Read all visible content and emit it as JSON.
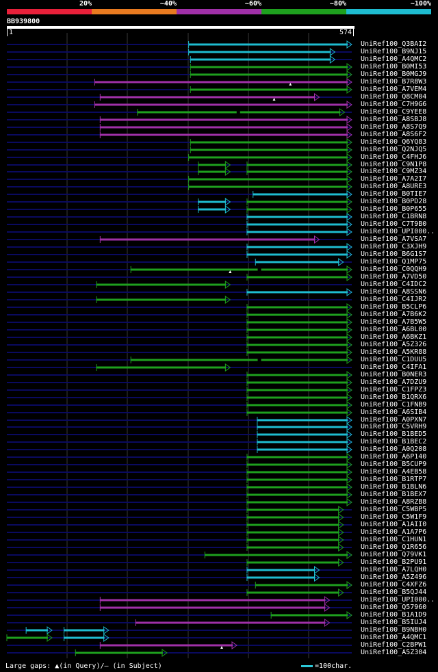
{
  "legend": {
    "labels": [
      "20%",
      "~40%",
      "~60%",
      "~80%",
      "~100%"
    ],
    "colors": [
      "#e8203a",
      "#e87a20",
      "#a030a8",
      "#1ea01e",
      "#1ebcd0"
    ]
  },
  "query": {
    "name": "BB939800",
    "start": "1",
    "end": "574"
  },
  "track_color": "#0a0a60",
  "hits": [
    {
      "id": "UniRef100_Q3BAI2",
      "color": "cyan",
      "start": 303,
      "end": 574
    },
    {
      "id": "UniRef100_B9NJ15",
      "color": "cyan",
      "start": 303,
      "end": 546
    },
    {
      "id": "UniRef100_A4QMC2",
      "color": "cyan",
      "start": 306,
      "end": 546
    },
    {
      "id": "UniRef100_B0MI53",
      "color": "green",
      "start": 306,
      "end": 574
    },
    {
      "id": "UniRef100_B0MGJ9",
      "color": "green",
      "start": 306,
      "end": 574
    },
    {
      "id": "UniRef100_B7R8W3",
      "color": "purple",
      "start": 147,
      "end": 574,
      "query_gap": 472
    },
    {
      "id": "UniRef100_A7VEM4",
      "color": "green",
      "start": 306,
      "end": 574
    },
    {
      "id": "UniRef100_Q8CM04",
      "color": "purple",
      "start": 156,
      "end": 520,
      "query_gap": 445
    },
    {
      "id": "UniRef100_C7H9G6",
      "color": "purple",
      "start": 147,
      "end": 574
    },
    {
      "id": "UniRef100_C9YEE8",
      "color": "green",
      "start": 218,
      "end": 562,
      "subject_gap": 385
    },
    {
      "id": "UniRef100_A8SBJ8",
      "color": "purple",
      "start": 156,
      "end": 574
    },
    {
      "id": "UniRef100_A8S7Q9",
      "color": "purple",
      "start": 156,
      "end": 574
    },
    {
      "id": "UniRef100_A8S6F2",
      "color": "purple",
      "start": 156,
      "end": 574
    },
    {
      "id": "UniRef100_Q6YQ83",
      "color": "green",
      "start": 306,
      "end": 574
    },
    {
      "id": "UniRef100_Q2NJQ5",
      "color": "green",
      "start": 306,
      "end": 574
    },
    {
      "id": "UniRef100_C4FHJ6",
      "color": "green",
      "start": 303,
      "end": 574
    },
    {
      "id": "UniRef100_C9N1P8",
      "color": "green",
      "start": 319,
      "end": 372,
      "start2": 400,
      "end2": 574
    },
    {
      "id": "UniRef100_C9MZ34",
      "color": "green",
      "start": 319,
      "end": 372,
      "start2": 400,
      "end2": 574
    },
    {
      "id": "UniRef100_A7A2I7",
      "color": "green",
      "start": 303,
      "end": 574
    },
    {
      "id": "UniRef100_A8URE3",
      "color": "green",
      "start": 303,
      "end": 574
    },
    {
      "id": "UniRef100_B0TIE7",
      "color": "cyan",
      "start": 410,
      "end": 574
    },
    {
      "id": "UniRef100_B0PD28",
      "color": "cyan",
      "start": 319,
      "end": 372,
      "start2": 400,
      "end2": 574,
      "color2": "green"
    },
    {
      "id": "UniRef100_B0P655",
      "color": "cyan",
      "start": 319,
      "end": 372,
      "start2": 400,
      "end2": 574,
      "color2": "green"
    },
    {
      "id": "UniRef100_C1BRN8",
      "color": "cyan",
      "start": 400,
      "end": 574
    },
    {
      "id": "UniRef100_C7T9B0",
      "color": "cyan",
      "start": 400,
      "end": 574
    },
    {
      "id": "UniRef100_UPI000..",
      "color": "cyan",
      "start": 400,
      "end": 574
    },
    {
      "id": "UniRef100_A7VSA7",
      "color": "purple",
      "start": 156,
      "end": 520
    },
    {
      "id": "UniRef100_C3XJH9",
      "color": "cyan",
      "start": 400,
      "end": 574
    },
    {
      "id": "UniRef100_B6G1S7",
      "color": "cyan",
      "start": 400,
      "end": 574
    },
    {
      "id": "UniRef100_Q1MP75",
      "color": "cyan",
      "start": 414,
      "end": 560
    },
    {
      "id": "UniRef100_C0QQH9",
      "color": "green",
      "start": 207,
      "end": 574,
      "query_gap": 372,
      "subject_gap": 420
    },
    {
      "id": "UniRef100_A7VD50",
      "color": "green",
      "start": 400,
      "end": 574
    },
    {
      "id": "UniRef100_C4IDC2",
      "color": "green",
      "start": 150,
      "end": 372
    },
    {
      "id": "UniRef100_A8SSN6",
      "color": "cyan",
      "start": 400,
      "end": 574
    },
    {
      "id": "UniRef100_C4IJR2",
      "color": "green",
      "start": 150,
      "end": 372
    },
    {
      "id": "UniRef100_B5CLP6",
      "color": "green",
      "start": 400,
      "end": 574
    },
    {
      "id": "UniRef100_A7B6K2",
      "color": "green",
      "start": 400,
      "end": 574
    },
    {
      "id": "UniRef100_A7B5W5",
      "color": "green",
      "start": 400,
      "end": 574
    },
    {
      "id": "UniRef100_A6BL00",
      "color": "green",
      "start": 400,
      "end": 574
    },
    {
      "id": "UniRef100_A6BKZ1",
      "color": "green",
      "start": 400,
      "end": 574
    },
    {
      "id": "UniRef100_A5Z326",
      "color": "green",
      "start": 400,
      "end": 574
    },
    {
      "id": "UniRef100_A5KR88",
      "color": "green",
      "start": 400,
      "end": 574
    },
    {
      "id": "UniRef100_C1DUU5",
      "color": "green",
      "start": 207,
      "end": 574,
      "subject_gap": 420
    },
    {
      "id": "UniRef100_C4IFA1",
      "color": "green",
      "start": 150,
      "end": 372
    },
    {
      "id": "UniRef100_B0NER3",
      "color": "green",
      "start": 400,
      "end": 574
    },
    {
      "id": "UniRef100_A7DZU9",
      "color": "green",
      "start": 400,
      "end": 574
    },
    {
      "id": "UniRef100_C1FPZ3",
      "color": "green",
      "start": 400,
      "end": 574
    },
    {
      "id": "UniRef100_B1QRX6",
      "color": "green",
      "start": 400,
      "end": 574
    },
    {
      "id": "UniRef100_C1FNB9",
      "color": "green",
      "start": 400,
      "end": 574
    },
    {
      "id": "UniRef100_A6SIB4",
      "color": "green",
      "start": 400,
      "end": 574
    },
    {
      "id": "UniRef100_A0PXN7",
      "color": "cyan",
      "start": 417,
      "end": 574
    },
    {
      "id": "UniRef100_C5VRH9",
      "color": "cyan",
      "start": 417,
      "end": 574
    },
    {
      "id": "UniRef100_B1BED5",
      "color": "cyan",
      "start": 417,
      "end": 574
    },
    {
      "id": "UniRef100_B1BEC2",
      "color": "cyan",
      "start": 417,
      "end": 574
    },
    {
      "id": "UniRef100_A0Q208",
      "color": "cyan",
      "start": 417,
      "end": 574
    },
    {
      "id": "UniRef100_A6P140",
      "color": "green",
      "start": 400,
      "end": 574
    },
    {
      "id": "UniRef100_B5CUP9",
      "color": "green",
      "start": 400,
      "end": 574
    },
    {
      "id": "UniRef100_A4EB58",
      "color": "green",
      "start": 400,
      "end": 574
    },
    {
      "id": "UniRef100_B1RTP7",
      "color": "green",
      "start": 400,
      "end": 574
    },
    {
      "id": "UniRef100_B1BLN6",
      "color": "green",
      "start": 400,
      "end": 574
    },
    {
      "id": "UniRef100_B1BEX7",
      "color": "green",
      "start": 400,
      "end": 574
    },
    {
      "id": "UniRef100_A8RZB8",
      "color": "green",
      "start": 400,
      "end": 574
    },
    {
      "id": "UniRef100_C5WBP5",
      "color": "green",
      "start": 400,
      "end": 560
    },
    {
      "id": "UniRef100_C5W1F9",
      "color": "green",
      "start": 400,
      "end": 560
    },
    {
      "id": "UniRef100_A1AII0",
      "color": "green",
      "start": 400,
      "end": 560
    },
    {
      "id": "UniRef100_A1A7P6",
      "color": "green",
      "start": 400,
      "end": 560
    },
    {
      "id": "UniRef100_C1HUN1",
      "color": "green",
      "start": 400,
      "end": 560
    },
    {
      "id": "UniRef100_Q1R656",
      "color": "green",
      "start": 400,
      "end": 560
    },
    {
      "id": "UniRef100_Q79VK1",
      "color": "green",
      "start": 330,
      "end": 574
    },
    {
      "id": "UniRef100_B2PU91",
      "color": "green",
      "start": 400,
      "end": 560
    },
    {
      "id": "UniRef100_A7LQH0",
      "color": "cyan",
      "start": 400,
      "end": 520
    },
    {
      "id": "UniRef100_A5Z496",
      "color": "cyan",
      "start": 400,
      "end": 520
    },
    {
      "id": "UniRef100_C4XFZ6",
      "color": "green",
      "start": 414,
      "end": 574
    },
    {
      "id": "UniRef100_B5QJ44",
      "color": "green",
      "start": 400,
      "end": 560
    },
    {
      "id": "UniRef100_UPI000..",
      "color": "purple",
      "start": 156,
      "end": 537
    },
    {
      "id": "UniRef100_Q57960",
      "color": "purple",
      "start": 156,
      "end": 537
    },
    {
      "id": "UniRef100_B1A1D9",
      "color": "green",
      "start": 440,
      "end": 574
    },
    {
      "id": "UniRef100_B5IUJ4",
      "color": "purple",
      "start": 215,
      "end": 537
    },
    {
      "id": "UniRef100_B9NBH0",
      "color": "cyan",
      "start": 33,
      "end": 76,
      "start2": 96,
      "end2": 170
    },
    {
      "id": "UniRef100_A4QMC1",
      "color": "green",
      "start": 1,
      "end": 76,
      "start2": 96,
      "end2": 170,
      "color2": "cyan"
    },
    {
      "id": "UniRef100_C2BPW1",
      "color": "purple",
      "start": 156,
      "end": 383,
      "query_gap": 358
    },
    {
      "id": "UniRef100_A5Z304",
      "color": "green",
      "start": 115,
      "end": 267
    }
  ],
  "footer": {
    "gaps_text": "Large gaps: ▲(in Query)/— (in Subject)",
    "scale_text": "=100char."
  }
}
